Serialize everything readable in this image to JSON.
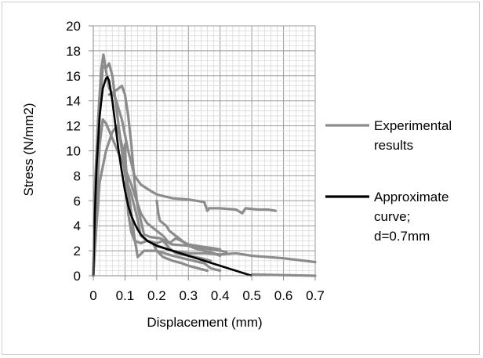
{
  "chart_data": {
    "type": "line",
    "xlabel": "Displacement (mm)",
    "ylabel": "Stress (N/mm2)",
    "xlim": [
      0,
      0.7
    ],
    "ylim": [
      0,
      20
    ],
    "x_ticks": [
      "0",
      "0.1",
      "0.2",
      "0.3",
      "0.4",
      "0.5",
      "0.6",
      "0.7"
    ],
    "y_ticks": [
      "0",
      "2",
      "4",
      "6",
      "8",
      "10",
      "12",
      "14",
      "16",
      "18",
      "20"
    ],
    "major_x_step": 0.1,
    "major_y_step": 2,
    "minor_x_step": 0.02,
    "minor_y_step": 0.4,
    "grid": true,
    "legend_position": "right",
    "legend": [
      {
        "lines": [
          "Experimental",
          "results"
        ],
        "color": "#8c8c8c"
      },
      {
        "lines": [
          "Approximate",
          "curve;",
          "d=0.7mm"
        ],
        "color": "#000000"
      }
    ],
    "series": [
      {
        "name": "Experimental results",
        "color": "#8c8c8c",
        "curves": [
          [
            [
              0,
              0
            ],
            [
              0.006,
              7.5
            ],
            [
              0.015,
              12.5
            ],
            [
              0.025,
              16.5
            ],
            [
              0.032,
              17.7
            ],
            [
              0.04,
              16.4
            ],
            [
              0.05,
              15
            ],
            [
              0.07,
              14.2
            ],
            [
              0.09,
              12.5
            ],
            [
              0.11,
              10
            ],
            [
              0.13,
              8
            ],
            [
              0.15,
              7.3
            ],
            [
              0.18,
              6.8
            ],
            [
              0.2,
              6.5
            ],
            [
              0.25,
              6.2
            ],
            [
              0.3,
              6.1
            ],
            [
              0.35,
              5.9
            ],
            [
              0.36,
              5.2
            ],
            [
              0.365,
              5.4
            ],
            [
              0.4,
              5.4
            ],
            [
              0.45,
              5.3
            ],
            [
              0.47,
              5
            ],
            [
              0.48,
              5.4
            ],
            [
              0.52,
              5.3
            ],
            [
              0.55,
              5.3
            ],
            [
              0.575,
              5.2
            ]
          ],
          [
            [
              0,
              0
            ],
            [
              0.01,
              8
            ],
            [
              0.02,
              13
            ],
            [
              0.03,
              16.8
            ],
            [
              0.04,
              16.6
            ],
            [
              0.05,
              17
            ],
            [
              0.06,
              16
            ],
            [
              0.075,
              13
            ],
            [
              0.09,
              10
            ],
            [
              0.1,
              8
            ],
            [
              0.12,
              6.5
            ],
            [
              0.14,
              4.5
            ],
            [
              0.15,
              3.2
            ],
            [
              0.17,
              2.8
            ],
            [
              0.2,
              2.4
            ],
            [
              0.25,
              2
            ],
            [
              0.3,
              1.8
            ],
            [
              0.35,
              1.8
            ],
            [
              0.4,
              1.7
            ],
            [
              0.45,
              1.8
            ],
            [
              0.5,
              1.6
            ],
            [
              0.6,
              1.4
            ],
            [
              0.7,
              1.1
            ]
          ],
          [
            [
              0,
              0
            ],
            [
              0.01,
              6
            ],
            [
              0.02,
              10.5
            ],
            [
              0.03,
              12.5
            ],
            [
              0.04,
              12.2
            ],
            [
              0.05,
              11.6
            ],
            [
              0.06,
              11
            ],
            [
              0.08,
              9.8
            ],
            [
              0.1,
              8.6
            ],
            [
              0.12,
              7.3
            ],
            [
              0.13,
              6.5
            ],
            [
              0.15,
              5
            ],
            [
              0.17,
              4.2
            ],
            [
              0.19,
              3.8
            ],
            [
              0.2,
              3.6
            ],
            [
              0.22,
              3.2
            ],
            [
              0.24,
              2.6
            ],
            [
              0.25,
              2.5
            ],
            [
              0.3,
              2.4
            ],
            [
              0.35,
              2.2
            ],
            [
              0.4,
              2
            ],
            [
              0.42,
              1.9
            ]
          ],
          [
            [
              0,
              0
            ],
            [
              0.01,
              4
            ],
            [
              0.02,
              7.5
            ],
            [
              0.04,
              10
            ],
            [
              0.06,
              11.5
            ],
            [
              0.075,
              12
            ],
            [
              0.085,
              11
            ],
            [
              0.1,
              9.5
            ],
            [
              0.11,
              7
            ],
            [
              0.12,
              5
            ],
            [
              0.13,
              3
            ],
            [
              0.14,
              1.5
            ],
            [
              0.16,
              2
            ],
            [
              0.2,
              2
            ],
            [
              0.25,
              1.6
            ],
            [
              0.3,
              1.3
            ],
            [
              0.35,
              1
            ],
            [
              0.37,
              0.6
            ],
            [
              0.4,
              0.4
            ]
          ],
          [
            [
              0.05,
              14.5
            ],
            [
              0.07,
              14.8
            ],
            [
              0.09,
              15.2
            ],
            [
              0.1,
              14.5
            ],
            [
              0.11,
              12.8
            ],
            [
              0.12,
              10.5
            ],
            [
              0.13,
              7.5
            ],
            [
              0.14,
              5.5
            ],
            [
              0.16,
              3.3
            ],
            [
              0.18,
              3.1
            ],
            [
              0.21,
              3
            ],
            [
              0.24,
              2.6
            ],
            [
              0.26,
              3
            ],
            [
              0.3,
              2.5
            ],
            [
              0.35,
              2.3
            ],
            [
              0.38,
              2.2
            ],
            [
              0.4,
              2.1
            ]
          ],
          [
            [
              0.1,
              10.5
            ],
            [
              0.105,
              7.5
            ],
            [
              0.11,
              5
            ],
            [
              0.12,
              3.5
            ],
            [
              0.13,
              2.8
            ],
            [
              0.15,
              2.6
            ],
            [
              0.17,
              2.8
            ],
            [
              0.2,
              2.6
            ],
            [
              0.22,
              2.8
            ],
            [
              0.24,
              2.2
            ],
            [
              0.26,
              1.8
            ],
            [
              0.3,
              1.6
            ],
            [
              0.34,
              1.4
            ],
            [
              0.37,
              1.2
            ]
          ],
          [
            [
              0.19,
              2.5
            ],
            [
              0.2,
              2
            ],
            [
              0.22,
              1.5
            ],
            [
              0.25,
              1.2
            ],
            [
              0.28,
              1
            ],
            [
              0.3,
              0.8
            ],
            [
              0.33,
              0.6
            ],
            [
              0.36,
              0.4
            ]
          ],
          [
            [
              0.2,
              6
            ],
            [
              0.205,
              5
            ],
            [
              0.21,
              4.4
            ],
            [
              0.22,
              4.2
            ],
            [
              0.23,
              4
            ],
            [
              0.24,
              3.6
            ],
            [
              0.26,
              3.2
            ],
            [
              0.28,
              2.8
            ],
            [
              0.3,
              2.4
            ],
            [
              0.32,
              2.2
            ],
            [
              0.35,
              2
            ],
            [
              0.38,
              1.8
            ],
            [
              0.4,
              1.6
            ]
          ],
          [
            [
              0.5,
              0.1
            ],
            [
              0.6,
              0.05
            ],
            [
              0.7,
              0
            ]
          ]
        ]
      },
      {
        "name": "Approximate curve; d=0.7mm",
        "color": "#000000",
        "x": [
          0,
          0.005,
          0.01,
          0.02,
          0.03,
          0.04,
          0.045,
          0.05,
          0.06,
          0.07,
          0.08,
          0.09,
          0.1,
          0.11,
          0.12,
          0.13,
          0.14,
          0.15,
          0.17,
          0.2,
          0.25,
          0.3,
          0.35,
          0.4,
          0.45,
          0.5
        ],
        "y": [
          0,
          5,
          8.5,
          12.8,
          15,
          15.8,
          15.9,
          15.6,
          14,
          12,
          10,
          8.3,
          6.8,
          5.6,
          4.8,
          4.2,
          3.7,
          3.3,
          2.8,
          2.4,
          2,
          1.6,
          1.2,
          0.8,
          0.4,
          0
        ]
      }
    ]
  }
}
